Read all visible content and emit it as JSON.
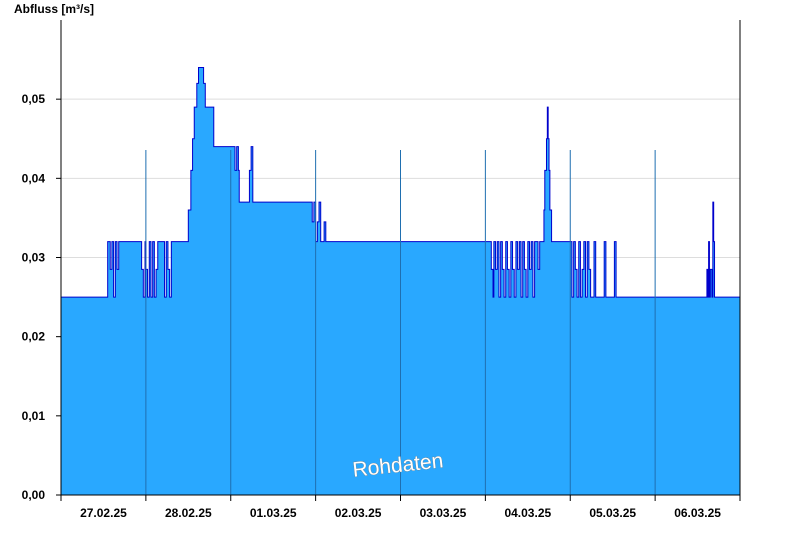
{
  "chart_data": {
    "type": "area",
    "ylabel": "Abfluss [m³/s]",
    "watermark": "Rohdaten",
    "ylim": [
      0,
      0.06
    ],
    "yticks": [
      "0,00",
      "0,01",
      "0,02",
      "0,03",
      "0,04",
      "0,05"
    ],
    "ytick_values": [
      0,
      0.01,
      0.02,
      0.03,
      0.04,
      0.05
    ],
    "xlim_days": [
      0,
      8
    ],
    "day_labels": [
      "27.02.25",
      "28.02.25",
      "01.03.25",
      "02.03.25",
      "03.03.25",
      "04.03.25",
      "05.03.25",
      "06.03.25"
    ],
    "grid": true,
    "colors": {
      "fill": "#29a8ff",
      "line": "#0000cc",
      "grid": "#dddddd",
      "day_sep": "#1f6fb0"
    },
    "series": [
      {
        "values": [
          [
            0.0,
            0.025
          ],
          [
            0.55,
            0.025
          ],
          [
            0.55,
            0.032
          ],
          [
            0.58,
            0.0285
          ],
          [
            0.6,
            0.032
          ],
          [
            0.62,
            0.025
          ],
          [
            0.64,
            0.032
          ],
          [
            0.66,
            0.0285
          ],
          [
            0.68,
            0.032
          ],
          [
            0.95,
            0.032
          ],
          [
            0.95,
            0.0285
          ],
          [
            0.97,
            0.025
          ],
          [
            0.99,
            0.032
          ],
          [
            1.0,
            0.0285
          ],
          [
            1.02,
            0.025
          ],
          [
            1.04,
            0.032
          ],
          [
            1.06,
            0.025
          ],
          [
            1.08,
            0.032
          ],
          [
            1.1,
            0.025
          ],
          [
            1.12,
            0.0285
          ],
          [
            1.14,
            0.032
          ],
          [
            1.2,
            0.032
          ],
          [
            1.22,
            0.025
          ],
          [
            1.24,
            0.032
          ],
          [
            1.26,
            0.0285
          ],
          [
            1.28,
            0.025
          ],
          [
            1.3,
            0.032
          ],
          [
            1.47,
            0.032
          ],
          [
            1.5,
            0.036
          ],
          [
            1.53,
            0.041
          ],
          [
            1.55,
            0.045
          ],
          [
            1.57,
            0.049
          ],
          [
            1.6,
            0.052
          ],
          [
            1.62,
            0.054
          ],
          [
            1.66,
            0.054
          ],
          [
            1.68,
            0.052
          ],
          [
            1.7,
            0.049
          ],
          [
            1.8,
            0.049
          ],
          [
            1.8,
            0.044
          ],
          [
            2.05,
            0.044
          ],
          [
            2.05,
            0.041
          ],
          [
            2.07,
            0.044
          ],
          [
            2.09,
            0.041
          ],
          [
            2.1,
            0.037
          ],
          [
            2.22,
            0.037
          ],
          [
            2.22,
            0.041
          ],
          [
            2.24,
            0.044
          ],
          [
            2.26,
            0.037
          ],
          [
            2.95,
            0.037
          ],
          [
            2.96,
            0.0345
          ],
          [
            2.98,
            0.037
          ],
          [
            3.0,
            0.032
          ],
          [
            3.02,
            0.0345
          ],
          [
            3.04,
            0.037
          ],
          [
            3.06,
            0.032
          ],
          [
            3.1,
            0.0345
          ],
          [
            3.12,
            0.032
          ],
          [
            5.05,
            0.032
          ],
          [
            5.07,
            0.0285
          ],
          [
            5.09,
            0.025
          ],
          [
            5.1,
            0.032
          ],
          [
            5.12,
            0.0285
          ],
          [
            5.14,
            0.032
          ],
          [
            5.16,
            0.025
          ],
          [
            5.18,
            0.032
          ],
          [
            5.2,
            0.0285
          ],
          [
            5.22,
            0.025
          ],
          [
            5.24,
            0.032
          ],
          [
            5.26,
            0.0285
          ],
          [
            5.28,
            0.025
          ],
          [
            5.3,
            0.032
          ],
          [
            5.32,
            0.0285
          ],
          [
            5.34,
            0.025
          ],
          [
            5.36,
            0.032
          ],
          [
            5.38,
            0.0285
          ],
          [
            5.4,
            0.032
          ],
          [
            5.42,
            0.025
          ],
          [
            5.44,
            0.032
          ],
          [
            5.46,
            0.0285
          ],
          [
            5.48,
            0.025
          ],
          [
            5.5,
            0.032
          ],
          [
            5.52,
            0.0285
          ],
          [
            5.54,
            0.032
          ],
          [
            5.56,
            0.025
          ],
          [
            5.58,
            0.032
          ],
          [
            5.6,
            0.032
          ],
          [
            5.62,
            0.0285
          ],
          [
            5.64,
            0.032
          ],
          [
            5.67,
            0.032
          ],
          [
            5.69,
            0.036
          ],
          [
            5.7,
            0.041
          ],
          [
            5.72,
            0.045
          ],
          [
            5.73,
            0.049
          ],
          [
            5.74,
            0.045
          ],
          [
            5.75,
            0.041
          ],
          [
            5.76,
            0.036
          ],
          [
            5.78,
            0.032
          ],
          [
            6.0,
            0.032
          ],
          [
            6.02,
            0.025
          ],
          [
            6.04,
            0.032
          ],
          [
            6.06,
            0.0285
          ],
          [
            6.08,
            0.025
          ],
          [
            6.1,
            0.032
          ],
          [
            6.12,
            0.025
          ],
          [
            6.14,
            0.0285
          ],
          [
            6.16,
            0.032
          ],
          [
            6.18,
            0.025
          ],
          [
            6.2,
            0.032
          ],
          [
            6.22,
            0.0285
          ],
          [
            6.24,
            0.025
          ],
          [
            6.28,
            0.032
          ],
          [
            6.3,
            0.025
          ],
          [
            6.38,
            0.025
          ],
          [
            6.4,
            0.032
          ],
          [
            6.42,
            0.025
          ],
          [
            6.5,
            0.025
          ],
          [
            6.52,
            0.032
          ],
          [
            6.54,
            0.025
          ],
          [
            7.6,
            0.025
          ],
          [
            7.61,
            0.0285
          ],
          [
            7.62,
            0.025
          ],
          [
            7.63,
            0.032
          ],
          [
            7.64,
            0.025
          ],
          [
            7.65,
            0.0285
          ],
          [
            7.67,
            0.025
          ],
          [
            7.68,
            0.037
          ],
          [
            7.69,
            0.032
          ],
          [
            7.7,
            0.025
          ],
          [
            8.0,
            0.025
          ]
        ]
      }
    ]
  }
}
